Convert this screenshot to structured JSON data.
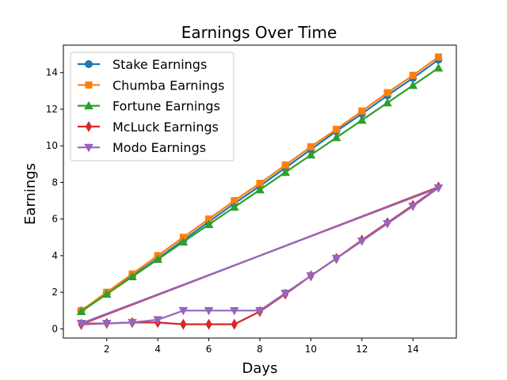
{
  "chart_data": {
    "type": "line",
    "title": "Earnings Over Time",
    "xlabel": "Days",
    "ylabel": "Earnings",
    "xlim": [
      0.3,
      15.7
    ],
    "ylim": [
      -0.5,
      15.5
    ],
    "xticks": [
      2,
      4,
      6,
      8,
      10,
      12,
      14
    ],
    "yticks": [
      0,
      2,
      4,
      6,
      8,
      10,
      12,
      14
    ],
    "grid": false,
    "legend_position": "top-left",
    "series": [
      {
        "name": "Stake Earnings",
        "color": "#1f77b4",
        "marker": "circle",
        "x": [
          1,
          2,
          3,
          4,
          5,
          6,
          7,
          8,
          9,
          10,
          11,
          12,
          13,
          14,
          15
        ],
        "y": [
          1.0,
          1.95,
          2.9,
          3.85,
          4.85,
          5.85,
          6.85,
          7.8,
          8.8,
          9.8,
          10.8,
          11.75,
          12.75,
          13.7,
          14.7
        ]
      },
      {
        "name": "Chumba Earnings",
        "color": "#ff7f0e",
        "marker": "square",
        "x": [
          1,
          2,
          3,
          4,
          5,
          6,
          7,
          8,
          9,
          10,
          11,
          12,
          13,
          14,
          15
        ],
        "y": [
          1.0,
          2.0,
          3.0,
          4.0,
          5.0,
          6.0,
          7.0,
          7.95,
          8.95,
          9.95,
          10.9,
          11.9,
          12.9,
          13.85,
          14.85
        ]
      },
      {
        "name": "Fortune Earnings",
        "color": "#2ca02c",
        "marker": "triangle-up",
        "x": [
          1,
          2,
          3,
          4,
          5,
          6,
          7,
          8,
          9,
          10,
          11,
          12,
          13,
          14,
          15
        ],
        "y": [
          0.95,
          1.9,
          2.85,
          3.8,
          4.75,
          5.7,
          6.65,
          7.6,
          8.55,
          9.5,
          10.45,
          11.4,
          12.35,
          13.3,
          14.25
        ]
      },
      {
        "name": "McLuck Earnings",
        "color": "#d62728",
        "marker": "thin-diamond",
        "x": [
          1,
          2,
          3,
          4,
          5,
          6,
          7,
          8,
          9,
          10,
          11,
          12,
          13,
          14,
          15,
          1
        ],
        "y": [
          0.25,
          0.3,
          0.35,
          0.35,
          0.25,
          0.25,
          0.25,
          0.95,
          1.9,
          2.9,
          3.85,
          4.85,
          5.8,
          6.75,
          7.75,
          0.25
        ]
      },
      {
        "name": "Modo Earnings",
        "color": "#9467bd",
        "marker": "triangle-down",
        "x": [
          1,
          2,
          3,
          4,
          5,
          6,
          7,
          8,
          9,
          10,
          11,
          12,
          13,
          14,
          15,
          1
        ],
        "y": [
          0.3,
          0.3,
          0.35,
          0.5,
          1.0,
          1.0,
          1.0,
          1.0,
          1.95,
          2.9,
          3.85,
          4.8,
          5.75,
          6.7,
          7.7,
          0.3
        ]
      }
    ]
  }
}
